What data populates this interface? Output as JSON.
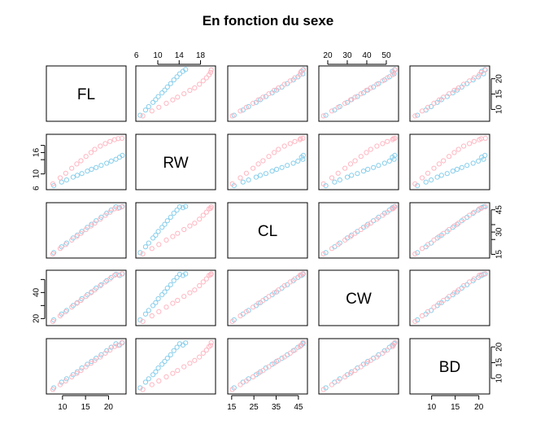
{
  "chart_data": {
    "type": "scatter",
    "title": "En fonction du sexe",
    "variables": [
      "FL",
      "RW",
      "CL",
      "CW",
      "BD"
    ],
    "ranges": {
      "FL": [
        7.2,
        23.1
      ],
      "RW": [
        6.5,
        20.2
      ],
      "CL": [
        14.7,
        47.6
      ],
      "CW": [
        17.1,
        54.6
      ],
      "BD": [
        6.1,
        21.6
      ]
    },
    "ticks": {
      "FL": [
        10,
        15,
        20
      ],
      "RW": [
        6,
        10,
        14,
        18
      ],
      "CL": [
        15,
        25,
        35,
        45
      ],
      "CW": [
        20,
        30,
        40,
        50
      ],
      "BD": [
        10,
        15,
        20
      ]
    },
    "tick_labels_shown": {
      "FL": {
        "bottom": [
          10,
          15,
          20
        ],
        "right": [
          10,
          15,
          20
        ]
      },
      "RW": {
        "top": [
          6,
          10,
          14,
          18
        ],
        "left": [
          6,
          10,
          16
        ]
      },
      "CL": {
        "bottom": [
          15,
          25,
          35,
          45
        ],
        "right": [
          15,
          30,
          45
        ]
      },
      "CW": {
        "top": [
          20,
          30,
          40,
          50
        ],
        "left": [
          20,
          40
        ]
      },
      "BD": {
        "bottom": [
          10,
          15,
          20
        ],
        "right": [
          10,
          15,
          20
        ]
      }
    },
    "series": [
      {
        "name": "",
        "color": "#87CEEB",
        "FL": [
          8.1,
          9.8,
          10.9,
          12.3,
          13.2,
          14.2,
          15.4,
          16.3,
          17.3,
          18.4,
          19.6,
          20.6,
          21.6,
          22.4,
          23.0
        ],
        "RW": [
          6.7,
          7.7,
          8.3,
          9.1,
          9.6,
          10.1,
          10.8,
          11.3,
          11.8,
          12.4,
          13.0,
          13.6,
          14.1,
          14.7,
          15.2
        ],
        "CL": [
          16.1,
          20.1,
          22.6,
          26.0,
          27.9,
          30.4,
          33.2,
          35.2,
          37.6,
          40.0,
          42.7,
          44.8,
          47.0,
          46.4,
          47.2
        ],
        "CW": [
          19.0,
          23.5,
          26.2,
          30.0,
          32.2,
          35.2,
          38.3,
          40.5,
          43.4,
          46.0,
          49.1,
          51.6,
          54.0,
          53.1,
          54.3
        ],
        "BD": [
          7.0,
          8.8,
          9.9,
          11.2,
          12.1,
          13.3,
          14.5,
          15.4,
          16.4,
          17.5,
          18.8,
          19.9,
          21.0,
          20.6,
          21.3
        ]
      },
      {
        "name": "",
        "color": "#FFB6C1",
        "FL": [
          7.9,
          9.5,
          10.7,
          12.0,
          13.1,
          14.0,
          15.1,
          16.2,
          17.0,
          18.2,
          19.3,
          20.3,
          21.3,
          22.1,
          22.9
        ],
        "RW": [
          7.2,
          8.9,
          10.2,
          11.6,
          12.8,
          13.7,
          14.9,
          16.0,
          16.9,
          17.8,
          18.5,
          19.1,
          19.6,
          19.9,
          20.0
        ],
        "CL": [
          15.3,
          18.9,
          21.6,
          24.6,
          27.0,
          29.1,
          31.7,
          34.1,
          36.0,
          38.7,
          41.3,
          43.4,
          45.7,
          46.0,
          47.0
        ],
        "CW": [
          17.8,
          22.1,
          25.3,
          28.8,
          31.7,
          34.0,
          37.0,
          39.8,
          42.0,
          45.2,
          48.1,
          50.5,
          53.2,
          53.6,
          54.4
        ],
        "BD": [
          6.5,
          8.0,
          9.2,
          10.5,
          11.6,
          12.5,
          13.7,
          14.8,
          15.7,
          16.8,
          18.0,
          19.0,
          20.1,
          20.5,
          21.4
        ]
      }
    ]
  }
}
